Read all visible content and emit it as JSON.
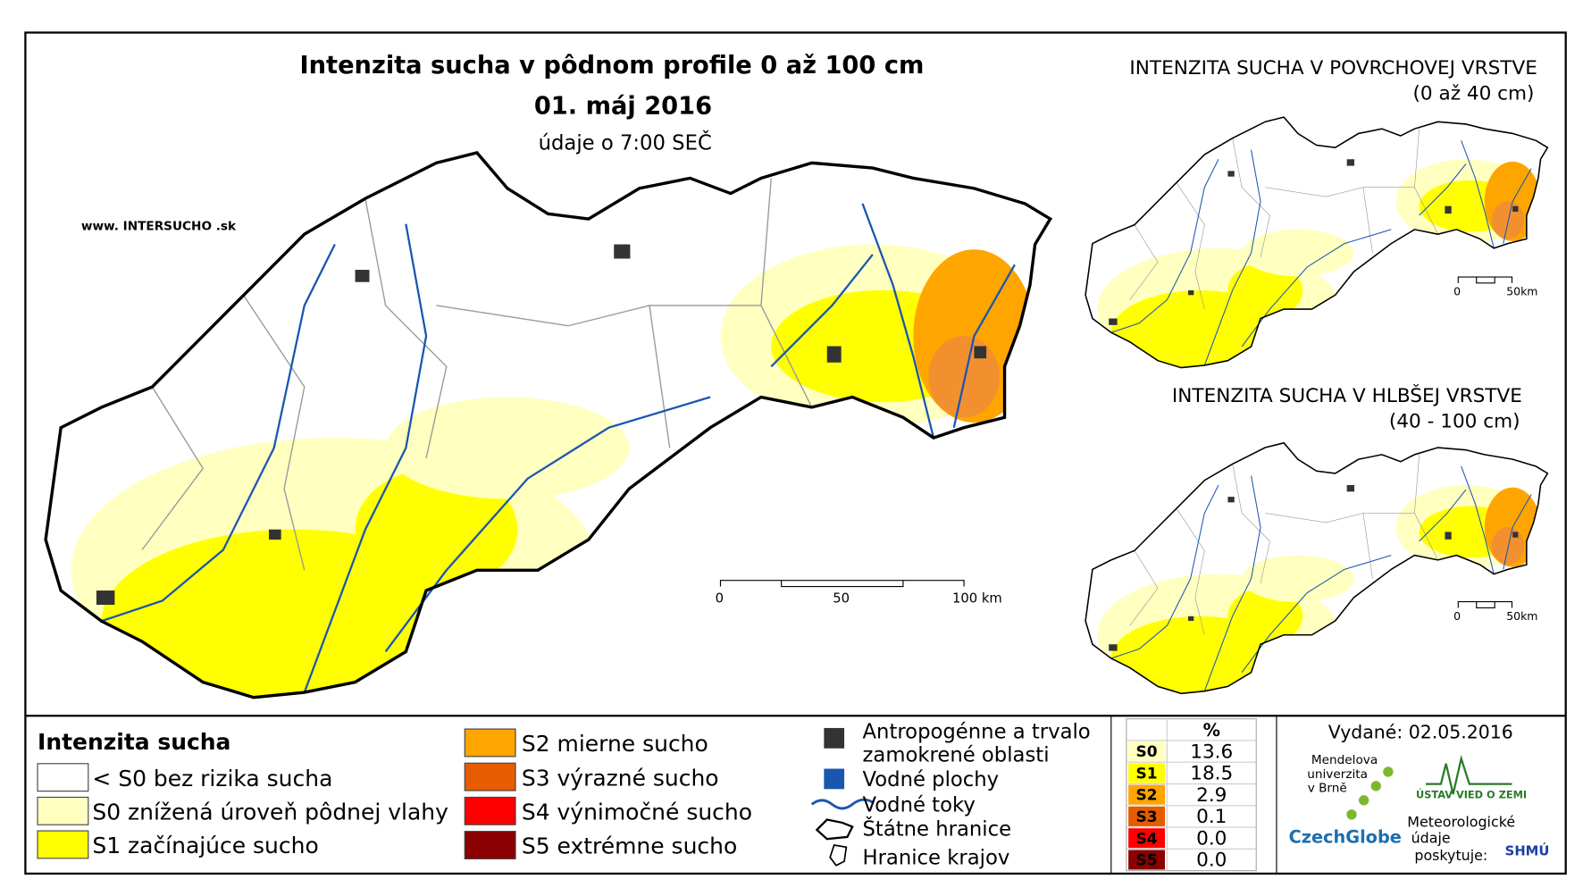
{
  "main_map": {
    "title": "Intenzita sucha v pôdnom profile 0 až 100 cm",
    "date": "01. máj 2016",
    "time": "údaje o 7:00 SEČ",
    "website": "www. INTERSUCHO .sk",
    "scale": [
      "0",
      "50",
      "100 km"
    ]
  },
  "insets": [
    {
      "title": "INTENZITA SUCHA V POVRCHOVEJ VRSTVE",
      "subtitle": "(0 až 40 cm)",
      "scale": [
        "0",
        "50km"
      ]
    },
    {
      "title": "INTENZITA SUCHA V HLBŠEJ VRSTVE",
      "subtitle": "(40 - 100 cm)",
      "scale": [
        "0",
        "50km"
      ]
    }
  ],
  "legend": {
    "title": "Intenzita sucha",
    "classes": [
      {
        "label": "< S0 bez rizika sucha",
        "color": "#ffffff"
      },
      {
        "label": "S0 znížená úroveň pôdnej vlahy",
        "color": "#ffffc0"
      },
      {
        "label": "S1 začínajúce sucho",
        "color": "#ffff00"
      },
      {
        "label": "S2 mierne sucho",
        "color": "#ffa500"
      },
      {
        "label": "S3 výrazné sucho",
        "color": "#e65c00"
      },
      {
        "label": "S4 výnimočné sucho",
        "color": "#ff0000"
      },
      {
        "label": "S5 extrémne sucho",
        "color": "#8b0000"
      }
    ],
    "features": [
      "Antropogénne a trvalo",
      "zamokrené oblasti",
      "Vodné plochy",
      "Vodné toky",
      "Štátne hranice",
      "Hranice krajov"
    ]
  },
  "table": {
    "header": "%",
    "rows": [
      {
        "class": "S0",
        "percent": "13.6",
        "color": "#ffffc0"
      },
      {
        "class": "S1",
        "percent": "18.5",
        "color": "#ffff00"
      },
      {
        "class": "S2",
        "percent": "2.9",
        "color": "#ffa500"
      },
      {
        "class": "S3",
        "percent": "0.1",
        "color": "#e65c00"
      },
      {
        "class": "S4",
        "percent": "0.0",
        "color": "#ff0000"
      },
      {
        "class": "S5",
        "percent": "0.0",
        "color": "#8b0000"
      }
    ]
  },
  "issued": "Vydané: 02.05.2016",
  "logos": {
    "mendel": [
      "Mendelova",
      "univerzita",
      "v Brně"
    ],
    "czechglobe": "CzechGlobe",
    "ustav": "ÚSTAV VIED O ZEMI",
    "meteo": [
      "Meteorologické",
      "údaje",
      "poskytuje:"
    ],
    "shmu": "SHMÚ"
  }
}
